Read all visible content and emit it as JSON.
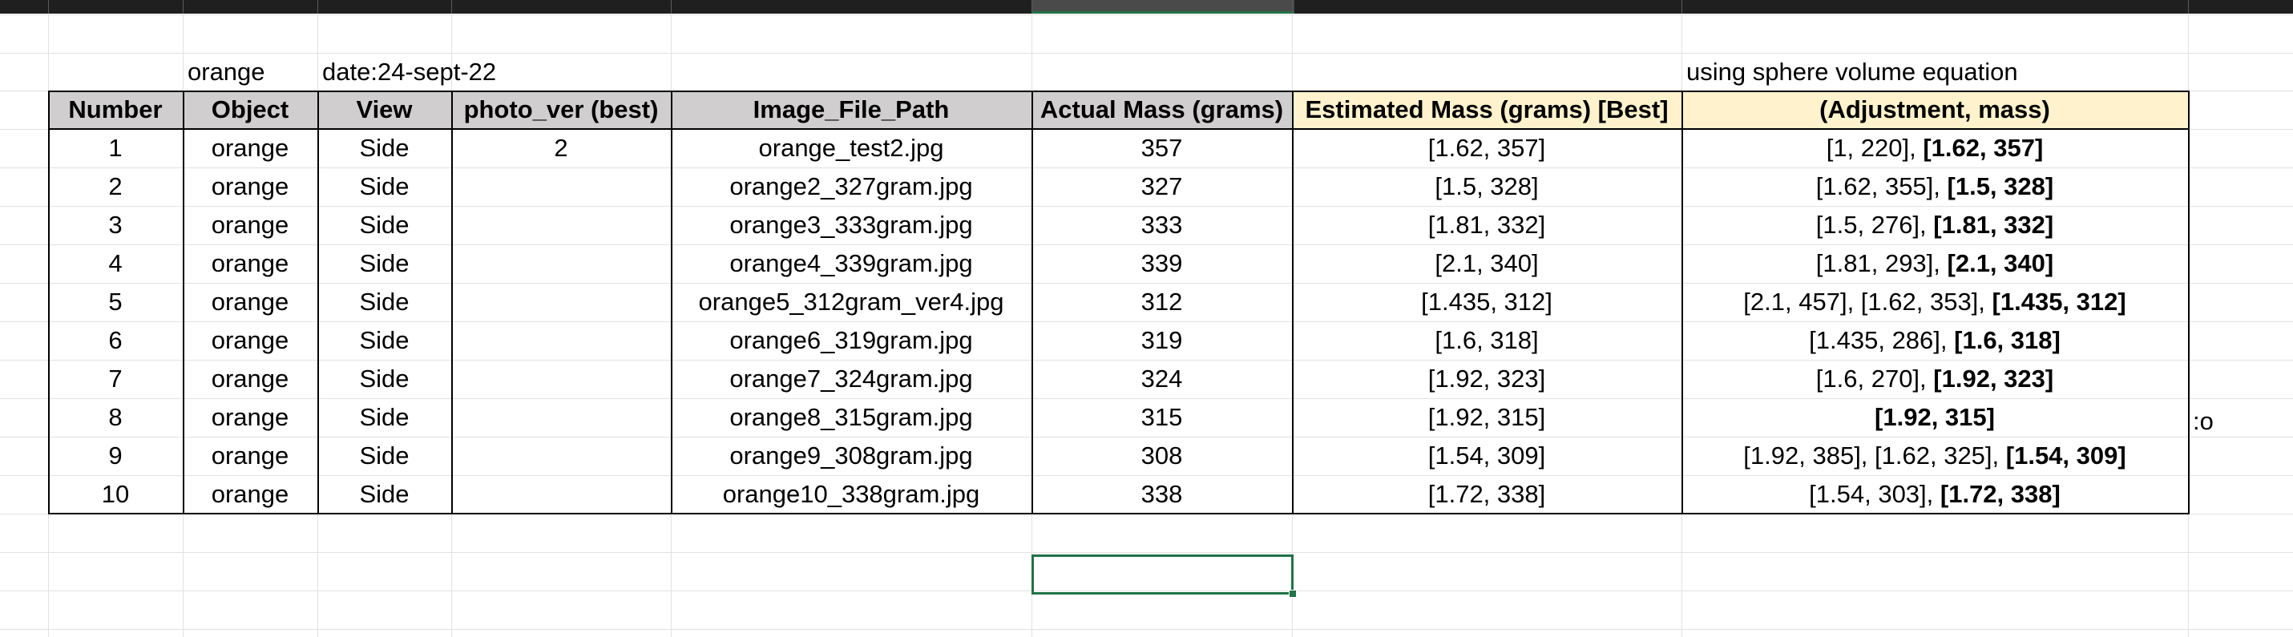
{
  "labels": {
    "fruit": "orange",
    "date": "date:24-sept-22",
    "method_note": "using sphere volume equation",
    "side_note": ":o"
  },
  "headers": [
    "Number",
    "Object",
    "View",
    "photo_ver (best)",
    "Image_File_Path",
    "Actual Mass (grams)",
    "Estimated Mass (grams) [Best]",
    "(Adjustment, mass)"
  ],
  "rows": [
    {
      "number": "1",
      "object": "orange",
      "view": "Side",
      "photo_ver": "2",
      "file": "orange_test2.jpg",
      "actual": "357",
      "estimated": "[1.62, 357]",
      "adj_prefix": "[1, 220], ",
      "adj_best": "[1.62, 357]"
    },
    {
      "number": "2",
      "object": "orange",
      "view": "Side",
      "photo_ver": "",
      "file": "orange2_327gram.jpg",
      "actual": "327",
      "estimated": "[1.5, 328]",
      "adj_prefix": "[1.62, 355], ",
      "adj_best": "[1.5, 328]"
    },
    {
      "number": "3",
      "object": "orange",
      "view": "Side",
      "photo_ver": "",
      "file": "orange3_333gram.jpg",
      "actual": "333",
      "estimated": "[1.81, 332]",
      "adj_prefix": "[1.5, 276], ",
      "adj_best": "[1.81, 332]"
    },
    {
      "number": "4",
      "object": "orange",
      "view": "Side",
      "photo_ver": "",
      "file": "orange4_339gram.jpg",
      "actual": "339",
      "estimated": "[2.1, 340]",
      "adj_prefix": "[1.81, 293], ",
      "adj_best": "[2.1, 340]"
    },
    {
      "number": "5",
      "object": "orange",
      "view": "Side",
      "photo_ver": "",
      "file": "orange5_312gram_ver4.jpg",
      "actual": "312",
      "estimated": "[1.435, 312]",
      "adj_prefix": "[2.1, 457], [1.62, 353], ",
      "adj_best": "[1.435, 312]"
    },
    {
      "number": "6",
      "object": "orange",
      "view": "Side",
      "photo_ver": "",
      "file": "orange6_319gram.jpg",
      "actual": "319",
      "estimated": "[1.6, 318]",
      "adj_prefix": "[1.435, 286], ",
      "adj_best": "[1.6, 318]"
    },
    {
      "number": "7",
      "object": "orange",
      "view": "Side",
      "photo_ver": "",
      "file": "orange7_324gram.jpg",
      "actual": "324",
      "estimated": "[1.92, 323]",
      "adj_prefix": "[1.6, 270], ",
      "adj_best": "[1.92, 323]"
    },
    {
      "number": "8",
      "object": "orange",
      "view": "Side",
      "photo_ver": "",
      "file": "orange8_315gram.jpg",
      "actual": "315",
      "estimated": "[1.92, 315]",
      "adj_prefix": "",
      "adj_best": "[1.92, 315]"
    },
    {
      "number": "9",
      "object": "orange",
      "view": "Side",
      "photo_ver": "",
      "file": "orange9_308gram.jpg",
      "actual": "308",
      "estimated": "[1.54, 309]",
      "adj_prefix": "[1.92, 385], [1.62, 325], ",
      "adj_best": "[1.54, 309]"
    },
    {
      "number": "10",
      "object": "orange",
      "view": "Side",
      "photo_ver": "",
      "file": "orange10_338gram.jpg",
      "actual": "338",
      "estimated": "[1.72, 338]",
      "adj_prefix": "[1.54, 303], ",
      "adj_best": "[1.72, 338]"
    }
  ],
  "colors": {
    "header_gray": "#d0cece",
    "header_yellow": "#fff2cc",
    "selection_green": "#217346",
    "gridline": "#e1e1e1"
  }
}
